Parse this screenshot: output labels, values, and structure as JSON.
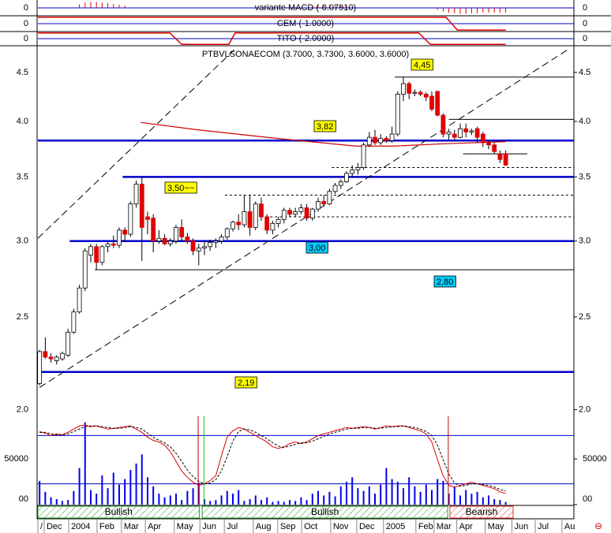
{
  "chart_data": {
    "type": "candlestick",
    "title": "PTBVLSONAECOM (3.7000, 3.7300, 3.6000, 3.6000)",
    "log_scale": true,
    "up_color": "#ffffff",
    "down_color": "#e00000",
    "open": [
      2.13,
      2.3,
      2.27,
      2.25,
      2.26,
      2.28,
      2.41,
      2.53,
      2.68,
      2.9,
      2.96,
      2.85,
      2.96,
      2.98,
      2.97,
      3.08,
      3.05,
      3.28,
      3.44,
      3.18,
      3.17,
      3.0,
      3.02,
      2.98,
      3.0,
      3.1,
      3.03,
      3.0,
      2.93,
      2.95,
      2.96,
      2.99,
      3.0,
      3.03,
      3.09,
      3.14,
      3.12,
      3.22,
      3.1,
      3.28,
      3.18,
      3.08,
      3.13,
      3.16,
      3.23,
      3.2,
      3.22,
      3.25,
      3.17,
      3.24,
      3.3,
      3.28,
      3.38,
      3.43,
      3.46,
      3.53,
      3.56,
      3.58,
      3.78,
      3.85,
      3.8,
      3.84,
      3.82,
      3.88,
      4.27,
      4.38,
      4.28,
      4.29,
      4.27,
      4.25,
      4.3,
      4.06,
      3.88,
      3.88,
      3.85,
      3.93,
      3.9,
      3.93,
      3.88,
      3.8,
      3.78,
      3.7,
      3.7
    ],
    "high": [
      2.31,
      2.38,
      2.29,
      2.28,
      2.3,
      2.43,
      2.55,
      2.7,
      2.95,
      2.98,
      2.98,
      2.97,
      3.0,
      3.04,
      3.1,
      3.1,
      3.3,
      3.47,
      3.5,
      3.22,
      3.2,
      3.08,
      3.05,
      3.02,
      3.12,
      3.16,
      3.06,
      3.02,
      2.98,
      3.0,
      3.01,
      3.02,
      3.05,
      3.1,
      3.15,
      3.2,
      3.35,
      3.35,
      3.3,
      3.33,
      3.2,
      3.15,
      3.18,
      3.25,
      3.25,
      3.25,
      3.28,
      3.28,
      3.25,
      3.33,
      3.35,
      3.4,
      3.45,
      3.48,
      3.55,
      3.6,
      3.62,
      3.8,
      3.9,
      3.92,
      3.88,
      3.86,
      3.95,
      4.3,
      4.45,
      4.4,
      4.32,
      4.31,
      4.29,
      4.3,
      4.3,
      4.08,
      3.93,
      3.92,
      3.98,
      3.98,
      3.93,
      3.95,
      3.9,
      3.82,
      3.8,
      3.73,
      3.73
    ],
    "low": [
      2.12,
      2.26,
      2.24,
      2.23,
      2.25,
      2.27,
      2.4,
      2.52,
      2.66,
      2.85,
      2.8,
      2.83,
      2.92,
      2.95,
      2.95,
      3.0,
      3.03,
      3.25,
      2.86,
      3.05,
      2.92,
      2.98,
      2.97,
      2.96,
      2.98,
      3.0,
      2.98,
      2.9,
      2.83,
      2.9,
      2.93,
      2.95,
      2.98,
      3.01,
      3.07,
      3.08,
      3.1,
      3.04,
      3.08,
      3.15,
      3.05,
      3.05,
      3.1,
      3.13,
      3.18,
      3.18,
      3.2,
      3.15,
      3.15,
      3.22,
      3.26,
      3.27,
      3.36,
      3.4,
      3.45,
      3.5,
      3.52,
      3.56,
      3.76,
      3.78,
      3.78,
      3.8,
      3.8,
      3.86,
      4.2,
      4.22,
      4.25,
      4.25,
      4.2,
      4.1,
      4.05,
      3.85,
      3.83,
      3.82,
      3.84,
      3.85,
      3.87,
      3.8,
      3.76,
      3.74,
      3.7,
      3.62,
      3.6
    ],
    "close": [
      2.3,
      2.27,
      2.26,
      2.27,
      2.29,
      2.41,
      2.53,
      2.68,
      2.93,
      2.96,
      2.85,
      2.96,
      2.98,
      2.97,
      3.08,
      3.05,
      3.28,
      3.44,
      3.1,
      3.16,
      3.0,
      3.02,
      2.98,
      3.0,
      3.1,
      3.03,
      3.0,
      2.93,
      2.95,
      2.96,
      2.99,
      3.0,
      3.03,
      3.09,
      3.14,
      3.12,
      3.22,
      3.1,
      3.28,
      3.18,
      3.08,
      3.13,
      3.16,
      3.23,
      3.2,
      3.22,
      3.25,
      3.17,
      3.24,
      3.3,
      3.28,
      3.38,
      3.43,
      3.46,
      3.53,
      3.56,
      3.58,
      3.78,
      3.85,
      3.8,
      3.84,
      3.82,
      3.88,
      4.27,
      4.38,
      4.28,
      4.29,
      4.27,
      4.24,
      4.12,
      4.06,
      3.88,
      3.9,
      3.85,
      3.93,
      3.9,
      3.91,
      3.85,
      3.8,
      3.78,
      3.72,
      3.65,
      3.6
    ],
    "xlim": [
      -0.3,
      94
    ],
    "ylim": [
      1.95,
      4.78
    ],
    "yticks": [
      {
        "value": 2,
        "label": "2.0"
      },
      2.5,
      {
        "value": 3,
        "label": "3.0"
      },
      3.5,
      {
        "value": 4,
        "label": "4.0"
      },
      4.5
    ],
    "xticks": [
      {
        "value": -0.3,
        "label": "/"
      },
      {
        "value": 0.81,
        "label": "Dec"
      },
      {
        "value": 5.12,
        "label": "2004"
      },
      {
        "value": 10.1,
        "label": "Feb"
      },
      {
        "value": 14.4,
        "label": "Mar"
      },
      {
        "value": 18.6,
        "label": "Apr"
      },
      {
        "value": 23.7,
        "label": "May"
      },
      {
        "value": 28.2,
        "label": "Jun"
      },
      {
        "value": 32.5,
        "label": "Jul"
      },
      {
        "value": 37.6,
        "label": "Aug"
      },
      {
        "value": 41.9,
        "label": "Sep"
      },
      {
        "value": 46.1,
        "label": "Oct"
      },
      {
        "value": 51.2,
        "label": "Nov"
      },
      {
        "value": 55.8,
        "label": "Dec"
      },
      {
        "value": 60.5,
        "label": "2005"
      },
      {
        "value": 66.2,
        "label": "Feb"
      },
      {
        "value": 69.4,
        "label": "Mar"
      },
      {
        "value": 73.4,
        "label": "Apr"
      },
      {
        "value": 78.4,
        "label": "May"
      },
      {
        "value": 83.1,
        "label": "Jun"
      },
      {
        "value": 87.2,
        "label": "Jul"
      },
      {
        "value": 91.9,
        "label": "Au"
      }
    ],
    "levels": [
      {
        "value": 3.82,
        "from": -0.3,
        "to": 94,
        "style": "thick",
        "color": "#0000cc"
      },
      {
        "value": 3.5,
        "from": 14.6,
        "to": 94,
        "style": "thick",
        "color": "#0000cc"
      },
      {
        "value": 3,
        "from": 5.3,
        "to": 94,
        "style": "thick",
        "color": "#0000cc"
      },
      {
        "value": 2.19,
        "from": -0.3,
        "to": 94,
        "style": "thick",
        "color": "#0000cc"
      },
      {
        "value": 4.45,
        "from": 62.5,
        "to": 94,
        "style": "thin",
        "color": "#000000"
      },
      {
        "value": 4.02,
        "from": 72,
        "to": 94,
        "style": "thin",
        "color": "#000000"
      },
      {
        "value": 3.7,
        "from": 74.5,
        "to": 85.8,
        "style": "thin",
        "color": "#000000"
      },
      {
        "value": 2.8,
        "from": 9.7,
        "to": 94,
        "style": "thin",
        "color": "#000000"
      },
      {
        "value": 3.58,
        "from": 51.4,
        "to": 94,
        "style": "dashed",
        "color": "#000000"
      },
      {
        "value": 3.35,
        "from": 32.6,
        "to": 94,
        "style": "dashed",
        "color": "#000000"
      },
      {
        "value": 3.18,
        "from": 38.9,
        "to": 94,
        "style": "dashed",
        "color": "#000000"
      }
    ],
    "level_labels": [
      {
        "text": "4,45",
        "color": "#ffff00"
      },
      {
        "text": "3,82",
        "color": "#ffff00"
      },
      {
        "text": "3,50~~",
        "color": "#ffff00"
      },
      {
        "text": "3,00",
        "color": "#00ccff"
      },
      {
        "text": "2,80",
        "color": "#00ccff"
      },
      {
        "text": "2,19",
        "color": "#ffff00"
      }
    ],
    "trendlines": [
      {
        "x": [
          -0.3,
          34.7
        ],
        "values": [
          3.02,
          4.78
        ]
      },
      {
        "x": [
          0,
          93.1
        ],
        "values": [
          2.11,
          4.76
        ]
      }
    ],
    "moving_average": {
      "color": "#cc0000",
      "x": [
        17.8,
        27.8,
        41.7,
        55.6,
        62.5,
        70.8,
        82
      ],
      "values": [
        3.99,
        3.92,
        3.84,
        3.77,
        3.77,
        3.79,
        3.81
      ]
    },
    "volume": {
      "color": "#0000ee",
      "ylim": [
        0,
        95000
      ],
      "yticks": [
        {
          "value": 0,
          "label": "00"
        },
        50000
      ],
      "values": [
        26000,
        14000,
        8000,
        6000,
        4000,
        5000,
        15000,
        40000,
        90000,
        16000,
        12000,
        32000,
        18000,
        35000,
        22000,
        28000,
        38000,
        45000,
        55000,
        30000,
        20000,
        12000,
        8000,
        10000,
        12000,
        5000,
        15000,
        18000,
        24000,
        6000,
        4000,
        5000,
        10000,
        15000,
        12000,
        16000,
        4000,
        6000,
        10000,
        5000,
        8000,
        3000,
        4000,
        3000,
        5000,
        4000,
        8000,
        5000,
        12000,
        15000,
        10000,
        14000,
        9000,
        20000,
        25000,
        30000,
        18000,
        15000,
        20000,
        12000,
        22000,
        40000,
        28000,
        25000,
        18000,
        30000,
        20000,
        14000,
        22000,
        16000,
        28000,
        26000,
        12000,
        20000,
        10000,
        16000,
        12000,
        14000,
        8000,
        10000,
        6000,
        5000,
        3000
      ]
    },
    "stochastic": {
      "ylim": [
        0,
        100
      ],
      "levels": [
        20,
        80
      ],
      "level_color": "#0000cc",
      "series": [
        {
          "color": "#dd0000",
          "style": "solid",
          "values": [
            85,
            83,
            80,
            82,
            81,
            84,
            88,
            92,
            93,
            91,
            92,
            90,
            88,
            89,
            90,
            91,
            92,
            88,
            84,
            78,
            74,
            72,
            68,
            60,
            48,
            36,
            28,
            22,
            18,
            20,
            24,
            30,
            55,
            78,
            86,
            90,
            88,
            84,
            80,
            76,
            72,
            66,
            64,
            66,
            70,
            72,
            70,
            72,
            76,
            80,
            82,
            84,
            86,
            88,
            90,
            89,
            90,
            91,
            90,
            88,
            90,
            92,
            91,
            92,
            92,
            90,
            88,
            86,
            82,
            72,
            50,
            30,
            18,
            16,
            18,
            20,
            22,
            20,
            18,
            16,
            14,
            10,
            8
          ]
        },
        {
          "color": "#000000",
          "style": "dashed",
          "values": [
            84,
            84,
            82,
            81,
            81,
            82,
            85,
            88,
            91,
            92,
            92,
            91,
            90,
            89,
            89,
            90,
            91,
            90,
            88,
            83,
            78,
            74,
            71,
            66,
            58,
            48,
            37,
            29,
            23,
            20,
            21,
            25,
            36,
            54,
            73,
            85,
            88,
            87,
            84,
            80,
            76,
            71,
            67,
            65,
            67,
            69,
            71,
            71,
            73,
            76,
            79,
            82,
            84,
            86,
            88,
            89,
            89,
            90,
            90,
            89,
            89,
            90,
            91,
            91,
            92,
            91,
            90,
            88,
            85,
            80,
            68,
            50,
            32,
            21,
            17,
            18,
            20,
            20,
            19,
            18,
            16,
            13,
            11
          ]
        }
      ]
    },
    "signals": [
      {
        "x": 27.9,
        "color": "#cc0000"
      },
      {
        "x": 28.9,
        "color": "#00cc00"
      },
      {
        "x": 71.9,
        "color": "#cc0000"
      }
    ],
    "bands": [
      {
        "label": "Bullish",
        "from": -0.3,
        "to": 28.1,
        "color": "#2a9d2a"
      },
      {
        "label": "Bullish",
        "from": 28.6,
        "to": 71.8,
        "color": "#2a9d2a"
      },
      {
        "label": "Bearish",
        "from": 72.2,
        "to": 83.3,
        "color": "#e03030"
      }
    ],
    "indicators": [
      {
        "label": "variante MACD (-0.07910)",
        "type": "bar",
        "color": "#dd0000",
        "ylim": [
          -0.12,
          0.12
        ],
        "yticks": [
          0
        ],
        "x": [
          7,
          8,
          9,
          10,
          11,
          12,
          13,
          14,
          15,
          48,
          49,
          50,
          51,
          52,
          53,
          54,
          70,
          71,
          72,
          73,
          74,
          75,
          76,
          77,
          78,
          79,
          80,
          81,
          82
        ],
        "values": [
          0.06,
          0.09,
          0.1,
          0.1,
          0.09,
          0.08,
          0.07,
          0.05,
          0.04,
          0.03,
          0.04,
          0.05,
          0.05,
          0.04,
          0.04,
          0.03,
          -0.03,
          -0.06,
          -0.08,
          -0.09,
          -0.1,
          -0.1,
          -0.09,
          -0.09,
          -0.08,
          -0.08,
          -0.08,
          -0.08,
          -0.0791
        ]
      },
      {
        "label": "CEM (-1.0000)",
        "type": "line",
        "color": "#dd0000",
        "ylim": [
          -1.1,
          1.1
        ],
        "yticks": [
          0
        ],
        "x": [
          -0.3,
          71.5,
          73.5,
          82
        ],
        "values": [
          1,
          1,
          -1,
          -1
        ]
      },
      {
        "label": "TITO (-2.0000)",
        "type": "line",
        "color": "#dd0000",
        "ylim": [
          -2.2,
          2.2
        ],
        "yticks": [
          0
        ],
        "x": [
          -0.3,
          22.9,
          25,
          33.3,
          34.4,
          66.7,
          68.75,
          82
        ],
        "values": [
          2,
          2,
          -2,
          -2,
          2,
          2,
          -2,
          -2
        ]
      }
    ]
  }
}
